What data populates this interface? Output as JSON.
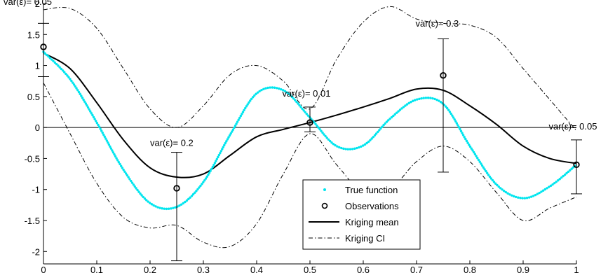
{
  "chart_data": {
    "type": "line",
    "xlim": [
      0,
      1
    ],
    "ylim": [
      -2.2,
      2
    ],
    "xticks": [
      0,
      0.1,
      0.2,
      0.3,
      0.4,
      0.5,
      0.6,
      0.7,
      0.8,
      0.9,
      1
    ],
    "xtick_labels": [
      "0",
      "0.1",
      "0.2",
      "0.3",
      "0.4",
      "0.5",
      "0.6",
      "0.7",
      "0.8",
      "0.9",
      "1"
    ],
    "yticks": [
      2,
      1.5,
      1,
      0.5,
      0,
      -0.5,
      -1,
      -1.5,
      -2
    ],
    "ytick_labels": [
      "2",
      "1.5",
      "1",
      "0.5",
      "0",
      "-0.5",
      "-1",
      "-1.5",
      "-2"
    ],
    "zero_line": true,
    "grid": false,
    "legend_position": "bottom-center",
    "colors": {
      "true_function": "#00e5ee",
      "kriging_mean": "#000000",
      "kriging_ci": "#000000",
      "axis": "#000000"
    },
    "series": [
      {
        "name": "True function",
        "style": "dots",
        "x": [
          0,
          0.05,
          0.1,
          0.15,
          0.2,
          0.25,
          0.3,
          0.35,
          0.4,
          0.45,
          0.5,
          0.55,
          0.6,
          0.65,
          0.7,
          0.75,
          0.8,
          0.85,
          0.9,
          0.95,
          1
        ],
        "y": [
          1.22,
          0.78,
          0.08,
          -0.68,
          -1.22,
          -1.28,
          -0.88,
          -0.12,
          0.55,
          0.6,
          0.16,
          -0.3,
          -0.29,
          0.14,
          0.45,
          0.38,
          -0.3,
          -0.92,
          -1.14,
          -0.95,
          -0.6
        ]
      },
      {
        "name": "Observations",
        "style": "circles",
        "x": [
          0,
          0.25,
          0.5,
          0.75,
          1
        ],
        "y": [
          1.3,
          -0.98,
          0.08,
          0.84,
          -0.6
        ]
      },
      {
        "name": "Kriging mean",
        "style": "solid",
        "x": [
          0,
          0.05,
          0.1,
          0.15,
          0.2,
          0.25,
          0.3,
          0.35,
          0.4,
          0.45,
          0.5,
          0.55,
          0.6,
          0.65,
          0.7,
          0.75,
          0.8,
          0.85,
          0.9,
          0.95,
          1
        ],
        "y": [
          1.2,
          0.95,
          0.4,
          -0.2,
          -0.65,
          -0.8,
          -0.75,
          -0.45,
          -0.15,
          -0.03,
          0.08,
          0.2,
          0.33,
          0.47,
          0.62,
          0.6,
          0.35,
          0.05,
          -0.3,
          -0.5,
          -0.58
        ]
      },
      {
        "name": "Kriging CI upper",
        "style": "dashdot",
        "x": [
          0,
          0.05,
          0.1,
          0.15,
          0.2,
          0.25,
          0.3,
          0.35,
          0.4,
          0.45,
          0.5,
          0.55,
          0.6,
          0.65,
          0.7,
          0.75,
          0.8,
          0.85,
          0.9,
          0.95,
          1
        ],
        "y": [
          1.9,
          1.92,
          1.6,
          0.95,
          0.3,
          0.0,
          0.35,
          0.85,
          1.0,
          0.75,
          0.3,
          1.1,
          1.7,
          1.95,
          1.75,
          1.68,
          1.65,
          1.45,
          0.95,
          0.45,
          -0.05
        ]
      },
      {
        "name": "Kriging CI lower",
        "style": "dashdot",
        "x": [
          0,
          0.05,
          0.1,
          0.15,
          0.2,
          0.25,
          0.3,
          0.35,
          0.4,
          0.45,
          0.5,
          0.55,
          0.6,
          0.65,
          0.7,
          0.75,
          0.8,
          0.85,
          0.9,
          0.95,
          1
        ],
        "y": [
          0.72,
          -0.1,
          -0.9,
          -1.45,
          -1.62,
          -1.58,
          -1.85,
          -1.92,
          -1.55,
          -0.75,
          -0.1,
          -0.6,
          -1.05,
          -1.0,
          -0.55,
          -0.3,
          -0.55,
          -1.05,
          -1.5,
          -1.3,
          -1.12
        ]
      }
    ],
    "error_bars": [
      {
        "x": 0,
        "y": 1.3,
        "low": 0.82,
        "high": 1.68
      },
      {
        "x": 0.25,
        "y": -0.98,
        "low": -2.15,
        "high": -0.4
      },
      {
        "x": 0.5,
        "y": 0.08,
        "low": -0.07,
        "high": 0.33
      },
      {
        "x": 0.75,
        "y": 0.84,
        "low": -0.72,
        "high": 1.43
      },
      {
        "x": 1,
        "y": -0.6,
        "low": -1.07,
        "high": -0.2
      }
    ],
    "annotations": [
      {
        "text": "var(ε)= 0.05",
        "x": -0.075,
        "y": 1.98
      },
      {
        "text": "var(ε)= 0.2",
        "x": 0.2,
        "y": -0.3
      },
      {
        "text": "var(ε)= 0.01",
        "x": 0.448,
        "y": 0.5
      },
      {
        "text": "var(ε)= 0.3",
        "x": 0.698,
        "y": 1.63
      },
      {
        "text": "var(ε)= 0.05",
        "x": 0.948,
        "y": -0.03
      }
    ],
    "legend": [
      {
        "label": "True function",
        "marker": "dot"
      },
      {
        "label": "Observations",
        "marker": "circle"
      },
      {
        "label": "Kriging mean",
        "marker": "solid-line"
      },
      {
        "label": "Kriging CI",
        "marker": "dashdot-line"
      }
    ]
  }
}
